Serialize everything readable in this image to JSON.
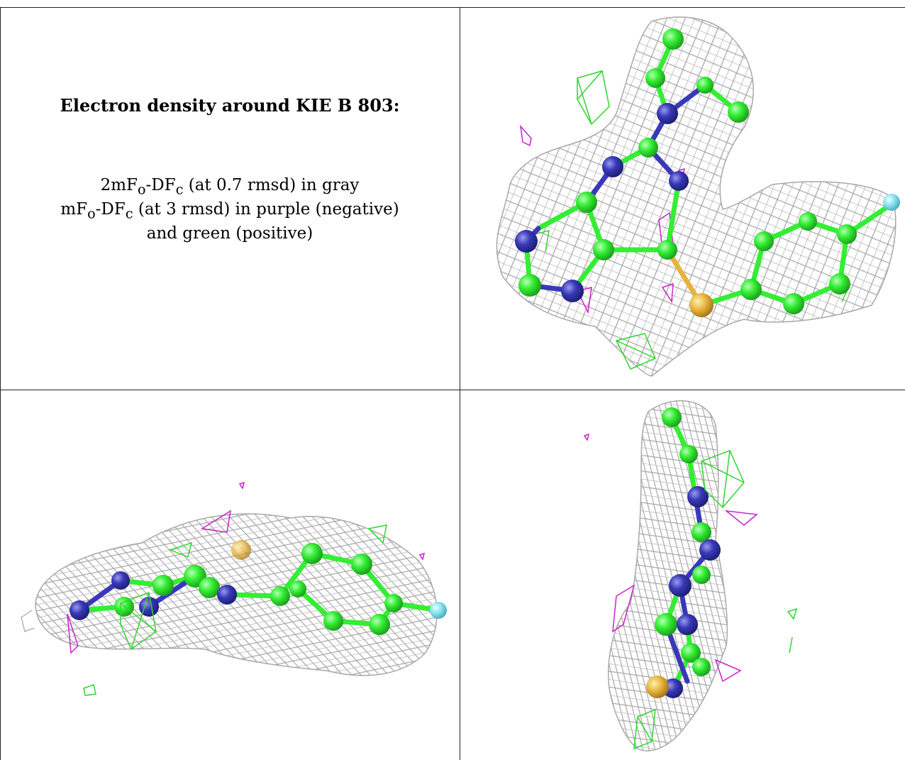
{
  "legend": {
    "title": "Electron density around KIE B 803:",
    "map1": {
      "name": "2mF",
      "sub_o": "o",
      "dash": "-DF",
      "sub_c": "c",
      "rest": " (at 0.7 rmsd) in gray"
    },
    "map2": {
      "name": "mF",
      "sub_o": "o",
      "dash": "-DF",
      "sub_c": "c",
      "rest": " (at 3 rmsd) in purple (negative)"
    },
    "map3": "and green (positive)"
  },
  "colors": {
    "mesh_2fofc": "#a8a8a8",
    "positive_density": "#2fd62f",
    "negative_density": "#cc22cc",
    "carbon": "#33ee33",
    "nitrogen": "#3838b8",
    "sulfur": "#e6b33c",
    "fluorine": "#88e0ee"
  },
  "views": [
    {
      "label": "top-right",
      "kind": "face-on"
    },
    {
      "label": "bottom-left",
      "kind": "edge-on horizontal"
    },
    {
      "label": "bottom-right",
      "kind": "edge-on vertical"
    }
  ]
}
